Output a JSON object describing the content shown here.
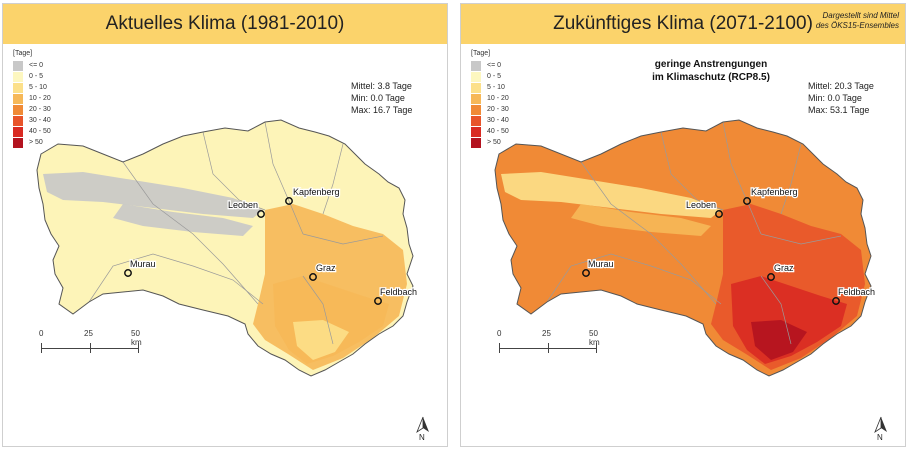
{
  "legend": {
    "unit": "[Tage]",
    "classes": [
      {
        "label": "<= 0",
        "color": "#c8c8c8"
      },
      {
        "label": "0 - 5",
        "color": "#fdf7c0"
      },
      {
        "label": "5 - 10",
        "color": "#fce08a"
      },
      {
        "label": "10 - 20",
        "color": "#f6b858"
      },
      {
        "label": "20 - 30",
        "color": "#f08a36"
      },
      {
        "label": "30 - 40",
        "color": "#e8542a"
      },
      {
        "label": "40 - 50",
        "color": "#d92a22"
      },
      {
        "label": "> 50",
        "color": "#b3131f"
      }
    ]
  },
  "panels": [
    {
      "title": "Aktuelles Klima (1981-2010)",
      "stats": {
        "mean": "Mittel: 3.8 Tage",
        "min": "Min: 0.0 Tage",
        "max": "Max: 16.7 Tage"
      },
      "base_color": "#fdf4b8",
      "patches": [
        {
          "color": "#f6b858"
        },
        {
          "color": "#f6b858"
        },
        {
          "color": "#fce08a"
        },
        {
          "color": "#c8c8c8"
        },
        {
          "color": "#c8c8c8"
        }
      ]
    },
    {
      "title": "Zukünftiges Klima (2071-2100)",
      "note": "Dargestellt sind Mittel\ndes ÖKS15-Ensembles",
      "scenario": "geringe Anstrengungen\nim Klimaschutz (RCP8.5)",
      "stats": {
        "mean": "Mittel: 20.3 Tage",
        "min": "Min: 0.0 Tage",
        "max": "Max: 53.1 Tage"
      },
      "base_color": "#f08a36",
      "patches": [
        {
          "color": "#e8542a"
        },
        {
          "color": "#d92a22"
        },
        {
          "color": "#b3131f"
        },
        {
          "color": "#fce08a"
        },
        {
          "color": "#f6b858"
        }
      ]
    }
  ],
  "cities": [
    "Kapfenberg",
    "Leoben",
    "Murau",
    "Graz",
    "Feldbach"
  ],
  "scale": {
    "labels": [
      "0",
      "25",
      "50 km"
    ]
  },
  "north_label": "N"
}
